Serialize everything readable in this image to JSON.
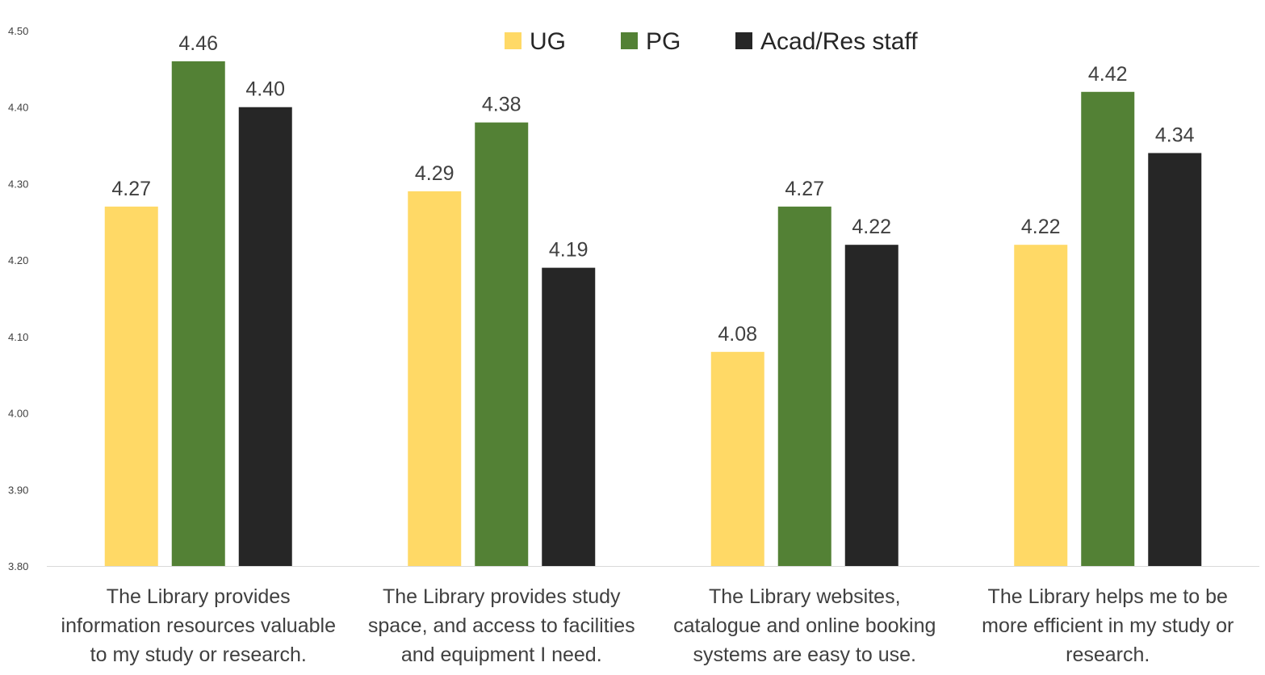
{
  "chart_data": {
    "type": "bar",
    "categories": [
      [
        "The Library provides",
        "information resources valuable",
        "to my study or research."
      ],
      [
        "The Library provides study",
        "space, and access to facilities",
        "and equipment I need."
      ],
      [
        "The Library websites,",
        "catalogue and online booking",
        "systems are easy to use."
      ],
      [
        "The Library helps me to be",
        "more efficient in my study or",
        "research."
      ]
    ],
    "series": [
      {
        "name": "UG",
        "color": "#FFD966",
        "values": [
          4.27,
          4.29,
          4.08,
          4.22
        ],
        "labels": [
          "4.27",
          "4.29",
          "4.08",
          "4.22"
        ]
      },
      {
        "name": "PG",
        "color": "#538135",
        "values": [
          4.46,
          4.38,
          4.27,
          4.42
        ],
        "labels": [
          "4.46",
          "4.38",
          "4.27",
          "4.42"
        ]
      },
      {
        "name": "Acad/Res staff",
        "color": "#262626",
        "values": [
          4.4,
          4.19,
          4.22,
          4.34
        ],
        "labels": [
          "4.40",
          "4.19",
          "4.22",
          "4.34"
        ]
      }
    ],
    "ylim": [
      3.8,
      4.5
    ],
    "yticks": [
      "3.80",
      "3.90",
      "4.00",
      "4.10",
      "4.20",
      "4.30",
      "4.40",
      "4.50"
    ],
    "grid": false,
    "legend_position": "top-center",
    "axis_color": "#D9D9D9"
  }
}
